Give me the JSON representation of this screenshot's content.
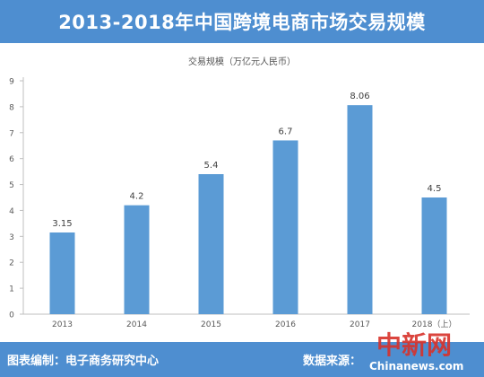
{
  "header": {
    "title": "2013-2018年中国跨境电商市场交易规模"
  },
  "chart_data": {
    "type": "bar",
    "title": "交易规模（万亿元人民币）",
    "categories": [
      "2013",
      "2014",
      "2015",
      "2016",
      "2017",
      "2018（上）"
    ],
    "values": [
      3.15,
      4.2,
      5.4,
      6.7,
      8.06,
      4.5
    ],
    "value_labels": [
      "3.15",
      "4.2",
      "5.4",
      "6.7",
      "8.06",
      "4.5"
    ],
    "ylim": [
      0,
      9
    ],
    "yticks": [
      0,
      1,
      2,
      3,
      4,
      5,
      6,
      7,
      8,
      9
    ],
    "grid": false,
    "bar_color": "#5b9bd5",
    "legend": "none"
  },
  "footer": {
    "source_label": "图表编制：电子商务研究中心",
    "data_source_label": "数据来源：",
    "watermark": "中新网",
    "watermark_sub": "Chinanews.com"
  },
  "colors": {
    "header_bg": "#4e8ed0",
    "footer_bg": "#4e8ed0",
    "watermark": "#d8312a"
  }
}
